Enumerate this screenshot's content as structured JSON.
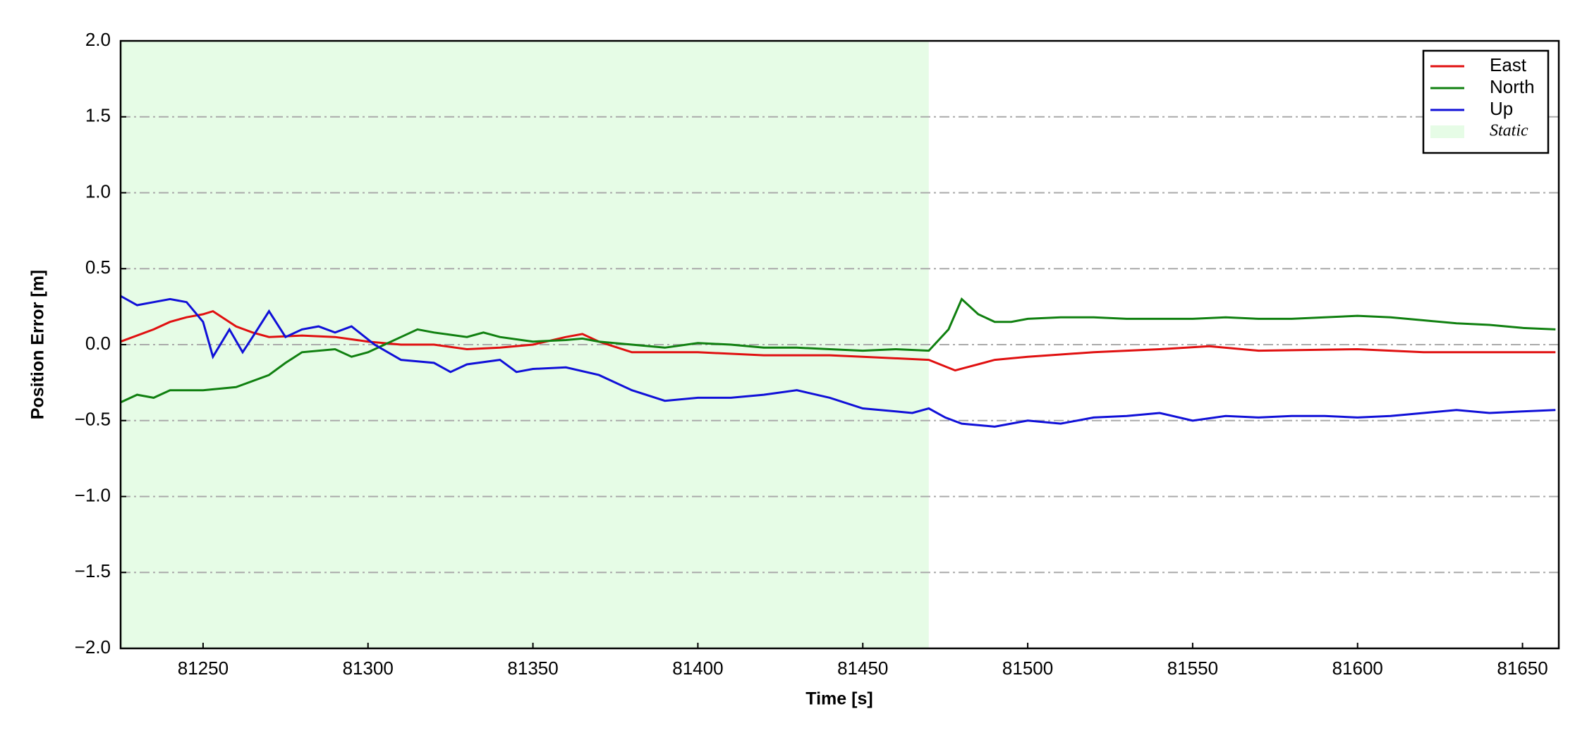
{
  "chart_data": {
    "type": "line",
    "xlabel": "Time [s]",
    "ylabel": "Position Error [m]",
    "xlim": [
      81225,
      81661
    ],
    "ylim": [
      -2.0,
      2.0
    ],
    "xticks": [
      81250,
      81300,
      81350,
      81400,
      81450,
      81500,
      81550,
      81600,
      81650
    ],
    "yticks": [
      {
        "value": -2.0,
        "label": "−2.0"
      },
      {
        "value": -1.5,
        "label": "−1.5"
      },
      {
        "value": -1.0,
        "label": "−1.0"
      },
      {
        "value": -0.5,
        "label": "−0.5"
      },
      {
        "value": 0.0,
        "label": "0.0"
      },
      0.5,
      {
        "value": 1.0,
        "label": "1.0"
      },
      1.5,
      {
        "value": 2.0,
        "label": "2.0"
      }
    ],
    "grid": true,
    "legend": "upper right",
    "spans": [
      {
        "name": "Static",
        "xlim": [
          81225,
          81470
        ],
        "color": "#e6fce6"
      }
    ],
    "series": [
      {
        "name": "East",
        "color": "#e01010",
        "x": [
          81225,
          81235,
          81240,
          81245,
          81250,
          81253,
          81260,
          81265,
          81270,
          81280,
          81290,
          81300,
          81310,
          81320,
          81330,
          81340,
          81350,
          81360,
          81365,
          81370,
          81380,
          81400,
          81420,
          81440,
          81450,
          81470,
          81478,
          81490,
          81500,
          81520,
          81540,
          81555,
          81570,
          81600,
          81620,
          81640,
          81660
        ],
        "values": [
          0.02,
          0.1,
          0.15,
          0.18,
          0.2,
          0.22,
          0.12,
          0.08,
          0.05,
          0.06,
          0.05,
          0.02,
          0.0,
          0.0,
          -0.03,
          -0.02,
          0.0,
          0.05,
          0.07,
          0.02,
          -0.05,
          -0.05,
          -0.07,
          -0.07,
          -0.08,
          -0.1,
          -0.17,
          -0.1,
          -0.08,
          -0.05,
          -0.03,
          -0.01,
          -0.04,
          -0.03,
          -0.05,
          -0.05,
          -0.05
        ]
      },
      {
        "name": "North",
        "color": "#108010",
        "x": [
          81225,
          81230,
          81235,
          81240,
          81250,
          81260,
          81270,
          81275,
          81280,
          81290,
          81295,
          81300,
          81305,
          81310,
          81315,
          81320,
          81330,
          81335,
          81340,
          81350,
          81360,
          81365,
          81370,
          81380,
          81390,
          81400,
          81410,
          81420,
          81430,
          81440,
          81450,
          81460,
          81470,
          81476,
          81480,
          81485,
          81490,
          81495,
          81500,
          81510,
          81520,
          81530,
          81540,
          81550,
          81560,
          81570,
          81580,
          81590,
          81600,
          81610,
          81620,
          81630,
          81640,
          81650,
          81660
        ],
        "values": [
          -0.38,
          -0.33,
          -0.35,
          -0.3,
          -0.3,
          -0.28,
          -0.2,
          -0.12,
          -0.05,
          -0.03,
          -0.08,
          -0.05,
          0.0,
          0.05,
          0.1,
          0.08,
          0.05,
          0.08,
          0.05,
          0.02,
          0.03,
          0.04,
          0.02,
          0.0,
          -0.02,
          0.01,
          0.0,
          -0.02,
          -0.02,
          -0.03,
          -0.04,
          -0.03,
          -0.04,
          0.1,
          0.3,
          0.2,
          0.15,
          0.15,
          0.17,
          0.18,
          0.18,
          0.17,
          0.17,
          0.17,
          0.18,
          0.17,
          0.17,
          0.18,
          0.19,
          0.18,
          0.16,
          0.14,
          0.13,
          0.11,
          0.1
        ]
      },
      {
        "name": "Up",
        "color": "#1010d8",
        "x": [
          81225,
          81230,
          81235,
          81240,
          81245,
          81250,
          81253,
          81258,
          81262,
          81265,
          81270,
          81275,
          81280,
          81285,
          81290,
          81295,
          81302,
          81310,
          81320,
          81325,
          81330,
          81340,
          81345,
          81350,
          81360,
          81370,
          81380,
          81390,
          81400,
          81410,
          81420,
          81430,
          81440,
          81450,
          81460,
          81465,
          81470,
          81475,
          81480,
          81490,
          81500,
          81510,
          81520,
          81530,
          81540,
          81550,
          81560,
          81570,
          81580,
          81590,
          81600,
          81610,
          81620,
          81630,
          81640,
          81650,
          81660
        ],
        "values": [
          0.32,
          0.26,
          0.28,
          0.3,
          0.28,
          0.15,
          -0.08,
          0.1,
          -0.05,
          0.05,
          0.22,
          0.05,
          0.1,
          0.12,
          0.08,
          0.12,
          0.0,
          -0.1,
          -0.12,
          -0.18,
          -0.13,
          -0.1,
          -0.18,
          -0.16,
          -0.15,
          -0.2,
          -0.3,
          -0.37,
          -0.35,
          -0.35,
          -0.33,
          -0.3,
          -0.35,
          -0.42,
          -0.44,
          -0.45,
          -0.42,
          -0.48,
          -0.52,
          -0.54,
          -0.5,
          -0.52,
          -0.48,
          -0.47,
          -0.45,
          -0.5,
          -0.47,
          -0.48,
          -0.47,
          -0.47,
          -0.48,
          -0.47,
          -0.45,
          -0.43,
          -0.45,
          -0.44,
          -0.43
        ]
      }
    ]
  }
}
